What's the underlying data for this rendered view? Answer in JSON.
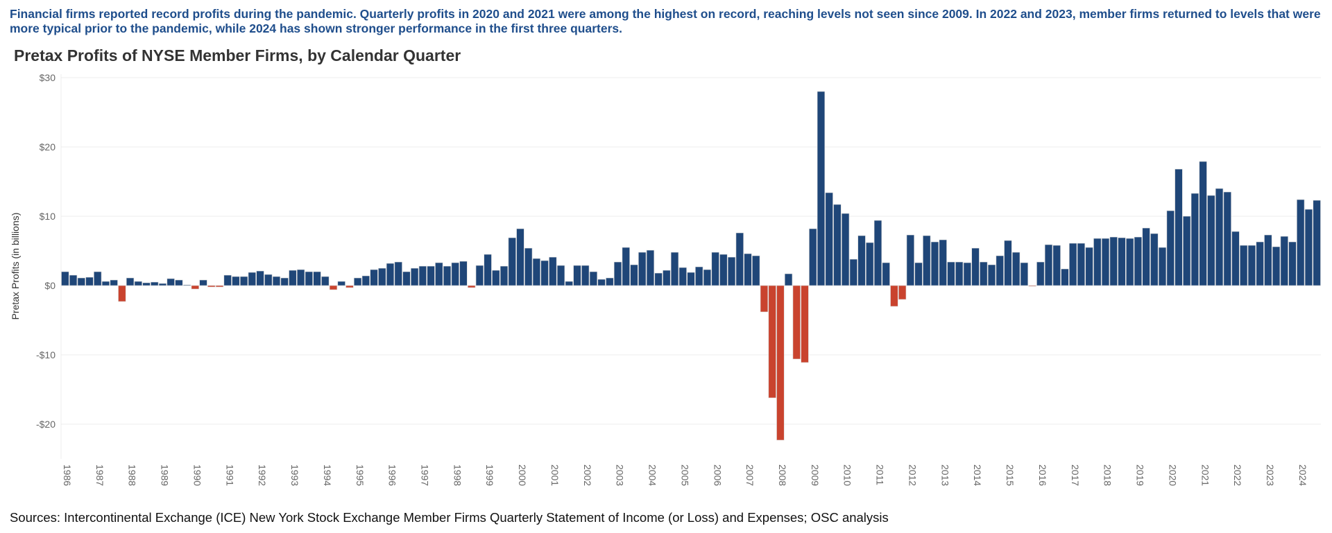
{
  "intro": "Financial firms reported record profits during the pandemic. Quarterly profits in 2020 and 2021 were among the highest on record, reaching levels not seen since 2009. In 2022 and 2023, member firms returned to levels that were more typical prior to the pandemic, while 2024 has shown stronger performance in the first three quarters.",
  "chart_data": {
    "type": "bar",
    "title": "Pretax Profits of NYSE Member Firms, by Calendar Quarter",
    "y_label": "Pretax Profits (in billions)",
    "source": "Sources: Intercontinental Exchange (ICE) New York Stock Exchange Member Firms Quarterly Statement of Income (or Loss) and Expenses; OSC analysis",
    "categories": [
      "1986",
      null,
      null,
      null,
      "1987",
      null,
      null,
      null,
      "1988",
      null,
      null,
      null,
      "1989",
      null,
      null,
      null,
      "1990",
      null,
      null,
      null,
      "1991",
      null,
      null,
      null,
      "1992",
      null,
      null,
      null,
      "1993",
      null,
      null,
      null,
      "1994",
      null,
      null,
      null,
      "1995",
      null,
      null,
      null,
      "1996",
      null,
      null,
      null,
      "1997",
      null,
      null,
      null,
      "1998",
      null,
      null,
      null,
      "1999",
      null,
      null,
      null,
      "2000",
      null,
      null,
      null,
      "2001",
      null,
      null,
      null,
      "2002",
      null,
      null,
      null,
      "2003",
      null,
      null,
      null,
      "2004",
      null,
      null,
      null,
      "2005",
      null,
      null,
      null,
      "2006",
      null,
      null,
      null,
      "2007",
      null,
      null,
      null,
      "2008",
      null,
      null,
      null,
      "2009",
      null,
      null,
      null,
      "2010",
      null,
      null,
      null,
      "2011",
      null,
      null,
      null,
      "2012",
      null,
      null,
      null,
      "2013",
      null,
      null,
      null,
      "2014",
      null,
      null,
      null,
      "2015",
      null,
      null,
      null,
      "2016",
      null,
      null,
      null,
      "2017",
      null,
      null,
      null,
      "2018",
      null,
      null,
      null,
      "2019",
      null,
      null,
      null,
      "2020",
      null,
      null,
      null,
      "2021",
      null,
      null,
      null,
      "2022",
      null,
      null,
      null,
      "2023",
      null,
      null,
      null,
      "2024",
      null,
      null
    ],
    "values": [
      2.0,
      1.5,
      1.1,
      1.2,
      2.0,
      0.6,
      0.8,
      -2.3,
      1.1,
      0.6,
      0.4,
      0.5,
      0.3,
      1.0,
      0.8,
      0.1,
      -0.5,
      0.8,
      -0.2,
      -0.2,
      1.5,
      1.3,
      1.3,
      1.9,
      2.1,
      1.6,
      1.3,
      1.1,
      2.2,
      2.3,
      2.0,
      2.0,
      1.3,
      -0.6,
      0.6,
      -0.3,
      1.1,
      1.4,
      2.3,
      2.5,
      3.2,
      3.4,
      2.0,
      2.5,
      2.8,
      2.8,
      3.3,
      2.8,
      3.3,
      3.5,
      -0.3,
      2.9,
      4.5,
      2.2,
      2.8,
      6.9,
      8.2,
      5.4,
      3.9,
      3.6,
      4.1,
      2.9,
      0.6,
      2.9,
      2.9,
      2.0,
      0.9,
      1.1,
      3.4,
      5.5,
      3.0,
      4.8,
      5.1,
      1.8,
      2.2,
      4.8,
      2.6,
      1.9,
      2.7,
      2.3,
      4.8,
      4.5,
      4.1,
      7.6,
      4.6,
      4.3,
      -3.8,
      -16.2,
      -22.3,
      1.7,
      -10.6,
      -11.1,
      8.2,
      28.0,
      13.4,
      11.7,
      10.4,
      3.8,
      7.2,
      6.2,
      9.4,
      3.3,
      -3.0,
      -2.0,
      7.3,
      3.3,
      7.2,
      6.3,
      6.6,
      3.4,
      3.4,
      3.3,
      5.4,
      3.4,
      3.0,
      4.3,
      6.5,
      4.8,
      3.3,
      -0.1,
      3.4,
      5.9,
      5.8,
      2.4,
      6.1,
      6.1,
      5.5,
      6.8,
      6.8,
      7.0,
      6.9,
      6.8,
      7.0,
      8.3,
      7.5,
      5.5,
      10.8,
      16.8,
      10.0,
      13.3,
      17.9,
      13.0,
      14.0,
      13.5,
      7.8,
      5.8,
      5.8,
      6.3,
      7.3,
      5.6,
      7.1,
      6.3,
      12.4,
      11.0,
      12.3
    ],
    "color": "#1f4678",
    "negative_color": "#c9432e",
    "ylim": [
      -25,
      30.5
    ],
    "yticks": [
      {
        "value": -20,
        "label": "-$20"
      },
      {
        "value": -10,
        "label": "-$10"
      },
      {
        "value": 0,
        "label": "$0"
      },
      {
        "value": 10,
        "label": "$10"
      },
      {
        "value": 20,
        "label": "$20"
      },
      {
        "value": 30,
        "label": "$30"
      }
    ],
    "grid": true
  }
}
